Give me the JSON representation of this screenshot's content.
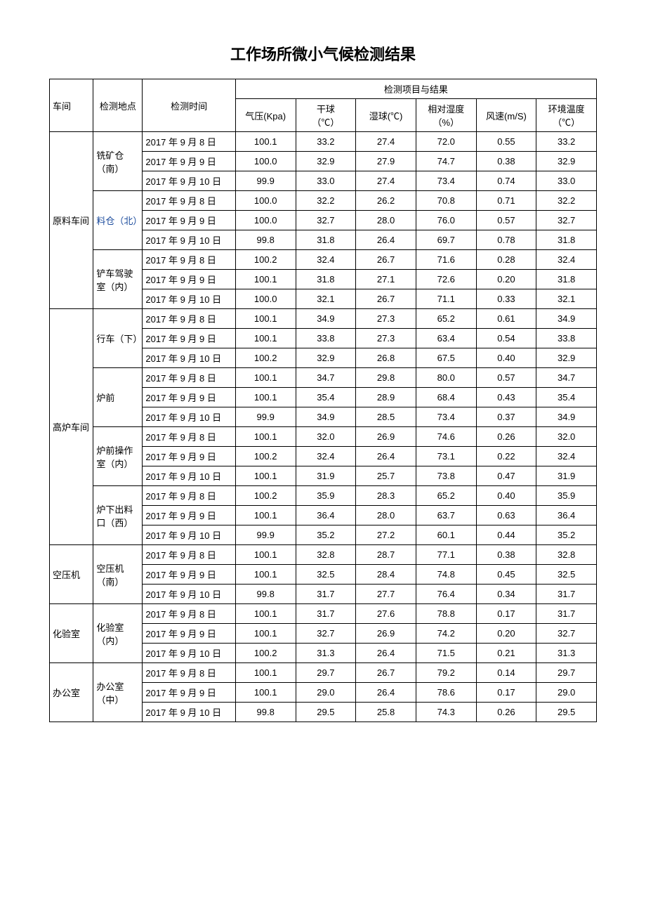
{
  "title": "工作场所微小气候检测结果",
  "headers": {
    "workshop": "车间",
    "location": "检测地点",
    "time": "检测时间",
    "result_group": "检测项目与结果",
    "pressure": "气压(Kpa)",
    "drybulb_l1": "干球",
    "drybulb_l2": "（℃）",
    "wetbulb": "湿球(℃)",
    "humidity_l1": "相对湿度",
    "humidity_l2": "（%）",
    "windspeed": "风速(m/S)",
    "envtemp_l1": "环境温度",
    "envtemp_l2": "（℃）"
  },
  "workshops": [
    {
      "name": "原料车间",
      "locations": [
        {
          "name": "铣矿仓（南）",
          "rows": [
            {
              "time": "2017 年 9 月 8 日",
              "p": "100.1",
              "db": "33.2",
              "wb": "27.4",
              "rh": "72.0",
              "ws": "0.55",
              "et": "33.2"
            },
            {
              "time": "2017 年 9 月 9 日",
              "p": "100.0",
              "db": "32.9",
              "wb": "27.9",
              "rh": "74.7",
              "ws": "0.38",
              "et": "32.9"
            },
            {
              "time": "2017 年 9 月 10 日",
              "p": "99.9",
              "db": "33.0",
              "wb": "27.4",
              "rh": "73.4",
              "ws": "0.74",
              "et": "33.0"
            }
          ]
        },
        {
          "name": "料仓（北）",
          "special": true,
          "rows": [
            {
              "time": "2017 年 9 月 8 日",
              "p": "100.0",
              "db": "32.2",
              "wb": "26.2",
              "rh": "70.8",
              "ws": "0.71",
              "et": "32.2"
            },
            {
              "time": "2017 年 9 月 9 日",
              "p": "100.0",
              "db": "32.7",
              "wb": "28.0",
              "rh": "76.0",
              "ws": "0.57",
              "et": "32.7"
            },
            {
              "time": "2017 年 9 月 10 日",
              "p": "99.8",
              "db": "31.8",
              "wb": "26.4",
              "rh": "69.7",
              "ws": "0.78",
              "et": "31.8"
            }
          ]
        },
        {
          "name": "铲车驾驶室（内）",
          "rows": [
            {
              "time": "2017 年 9 月 8 日",
              "p": "100.2",
              "db": "32.4",
              "wb": "26.7",
              "rh": "71.6",
              "ws": "0.28",
              "et": "32.4"
            },
            {
              "time": "2017 年 9 月 9 日",
              "p": "100.1",
              "db": "31.8",
              "wb": "27.1",
              "rh": "72.6",
              "ws": "0.20",
              "et": "31.8"
            },
            {
              "time": "2017 年 9 月 10 日",
              "p": "100.0",
              "db": "32.1",
              "wb": "26.7",
              "rh": "71.1",
              "ws": "0.33",
              "et": "32.1"
            }
          ]
        }
      ]
    },
    {
      "name": "高炉车间",
      "locations": [
        {
          "name": "行车（下）",
          "rows": [
            {
              "time": "2017 年 9 月 8 日",
              "p": "100.1",
              "db": "34.9",
              "wb": "27.3",
              "rh": "65.2",
              "ws": "0.61",
              "et": "34.9"
            },
            {
              "time": "2017 年 9 月 9 日",
              "p": "100.1",
              "db": "33.8",
              "wb": "27.3",
              "rh": "63.4",
              "ws": "0.54",
              "et": "33.8"
            },
            {
              "time": "2017 年 9 月 10 日",
              "p": "100.2",
              "db": "32.9",
              "wb": "26.8",
              "rh": "67.5",
              "ws": "0.40",
              "et": "32.9"
            }
          ]
        },
        {
          "name": "炉前",
          "rows": [
            {
              "time": "2017 年 9 月 8 日",
              "p": "100.1",
              "db": "34.7",
              "wb": "29.8",
              "rh": "80.0",
              "ws": "0.57",
              "et": "34.7"
            },
            {
              "time": "2017 年 9 月 9 日",
              "p": "100.1",
              "db": "35.4",
              "wb": "28.9",
              "rh": "68.4",
              "ws": "0.43",
              "et": "35.4"
            },
            {
              "time": "2017 年 9 月 10 日",
              "p": "99.9",
              "db": "34.9",
              "wb": "28.5",
              "rh": "73.4",
              "ws": "0.37",
              "et": "34.9"
            }
          ]
        },
        {
          "name": "炉前操作室（内）",
          "rows": [
            {
              "time": "2017 年 9 月 8 日",
              "p": "100.1",
              "db": "32.0",
              "wb": "26.9",
              "rh": "74.6",
              "ws": "0.26",
              "et": "32.0"
            },
            {
              "time": "2017 年 9 月 9 日",
              "p": "100.2",
              "db": "32.4",
              "wb": "26.4",
              "rh": "73.1",
              "ws": "0.22",
              "et": "32.4"
            },
            {
              "time": "2017 年 9 月 10 日",
              "p": "100.1",
              "db": "31.9",
              "wb": "25.7",
              "rh": "73.8",
              "ws": "0.47",
              "et": "31.9"
            }
          ]
        },
        {
          "name": "炉下出料口（西）",
          "rows": [
            {
              "time": "2017 年 9 月 8 日",
              "p": "100.2",
              "db": "35.9",
              "wb": "28.3",
              "rh": "65.2",
              "ws": "0.40",
              "et": "35.9"
            },
            {
              "time": "2017 年 9 月 9 日",
              "p": "100.1",
              "db": "36.4",
              "wb": "28.0",
              "rh": "63.7",
              "ws": "0.63",
              "et": "36.4"
            },
            {
              "time": "2017 年 9 月 10 日",
              "p": "99.9",
              "db": "35.2",
              "wb": "27.2",
              "rh": "60.1",
              "ws": "0.44",
              "et": "35.2"
            }
          ]
        }
      ]
    },
    {
      "name": "空压机",
      "locations": [
        {
          "name": "空压机（南）",
          "rows": [
            {
              "time": "2017 年 9 月 8 日",
              "p": "100.1",
              "db": "32.8",
              "wb": "28.7",
              "rh": "77.1",
              "ws": "0.38",
              "et": "32.8"
            },
            {
              "time": "2017 年 9 月 9 日",
              "p": "100.1",
              "db": "32.5",
              "wb": "28.4",
              "rh": "74.8",
              "ws": "0.45",
              "et": "32.5"
            },
            {
              "time": "2017 年 9 月 10 日",
              "p": "99.8",
              "db": "31.7",
              "wb": "27.7",
              "rh": "76.4",
              "ws": "0.34",
              "et": "31.7"
            }
          ]
        }
      ]
    },
    {
      "name": "化验室",
      "locations": [
        {
          "name": "化验室（内）",
          "rows": [
            {
              "time": "2017 年 9 月 8 日",
              "p": "100.1",
              "db": "31.7",
              "wb": "27.6",
              "rh": "78.8",
              "ws": "0.17",
              "et": "31.7"
            },
            {
              "time": "2017 年 9 月 9 日",
              "p": "100.1",
              "db": "32.7",
              "wb": "26.9",
              "rh": "74.2",
              "ws": "0.20",
              "et": "32.7"
            },
            {
              "time": "2017 年 9 月 10 日",
              "p": "100.2",
              "db": "31.3",
              "wb": "26.4",
              "rh": "71.5",
              "ws": "0.21",
              "et": "31.3"
            }
          ]
        }
      ]
    },
    {
      "name": "办公室",
      "locations": [
        {
          "name": "办公室（中）",
          "rows": [
            {
              "time": "2017 年 9 月 8 日",
              "p": "100.1",
              "db": "29.7",
              "wb": "26.7",
              "rh": "79.2",
              "ws": "0.14",
              "et": "29.7"
            },
            {
              "time": "2017 年 9 月 9 日",
              "p": "100.1",
              "db": "29.0",
              "wb": "26.4",
              "rh": "78.6",
              "ws": "0.17",
              "et": "29.0"
            },
            {
              "time": "2017 年 9 月 10 日",
              "p": "99.8",
              "db": "29.5",
              "wb": "25.8",
              "rh": "74.3",
              "ws": "0.26",
              "et": "29.5"
            }
          ]
        }
      ]
    }
  ]
}
